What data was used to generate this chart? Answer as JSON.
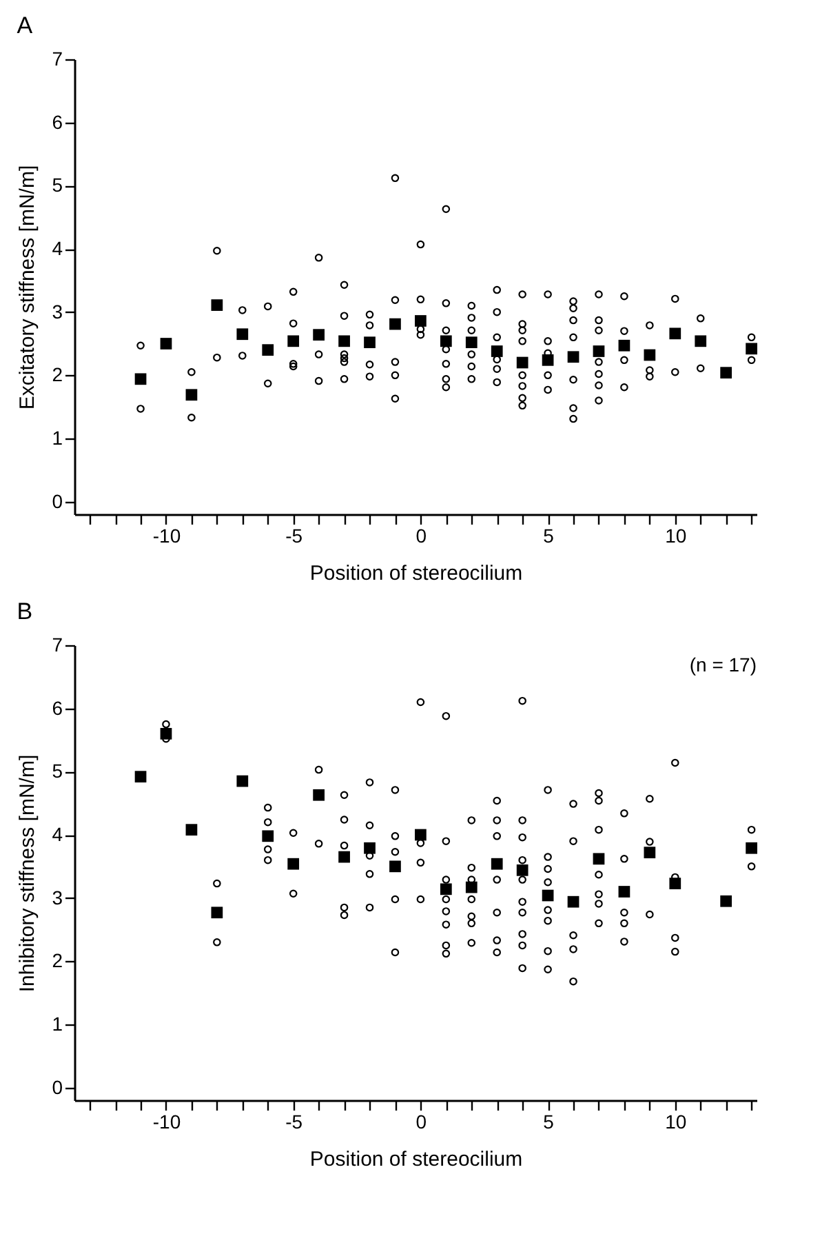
{
  "chart_data": [
    {
      "type": "scatter",
      "title": "A",
      "xlabel": "Position of stereocilium",
      "ylabel": "Excitatory stiffness [mN/m]",
      "xlim": [
        -13.6,
        13.2
      ],
      "ylim": [
        -0.2,
        7
      ],
      "xticks": [
        {
          "value": -13,
          "label": null
        },
        {
          "value": -12,
          "label": null
        },
        {
          "value": -11,
          "label": null
        },
        -10,
        {
          "value": -9,
          "label": null
        },
        {
          "value": -8,
          "label": null
        },
        {
          "value": -7,
          "label": null
        },
        {
          "value": -6,
          "label": null
        },
        -5,
        {
          "value": -4,
          "label": null
        },
        {
          "value": -3,
          "label": null
        },
        {
          "value": -2,
          "label": null
        },
        {
          "value": -1,
          "label": null
        },
        0,
        {
          "value": 1,
          "label": null
        },
        {
          "value": 2,
          "label": null
        },
        {
          "value": 3,
          "label": null
        },
        {
          "value": 4,
          "label": null
        },
        5,
        {
          "value": 6,
          "label": null
        },
        {
          "value": 7,
          "label": null
        },
        {
          "value": 8,
          "label": null
        },
        {
          "value": 9,
          "label": null
        },
        10,
        {
          "value": 11,
          "label": null
        },
        {
          "value": 12,
          "label": null
        },
        {
          "value": 13,
          "label": null
        }
      ],
      "yticks": [
        0,
        1,
        2,
        3,
        4,
        5,
        6,
        7
      ],
      "series": [
        {
          "type": "scatter",
          "marker": "circle",
          "color": "#000000",
          "x": [
            -11,
            -11,
            -9,
            -9,
            -8,
            -8,
            -7,
            -7,
            -6,
            -6,
            -5,
            -5,
            -5,
            -5,
            -4,
            -4,
            -4,
            -3,
            -3,
            -3,
            -3,
            -3,
            -3,
            -2,
            -2,
            -2,
            -2,
            -1,
            -1,
            -1,
            -1,
            -1,
            0,
            0,
            0,
            0,
            1,
            1,
            1,
            1,
            1,
            1,
            1,
            2,
            2,
            2,
            2,
            2,
            2,
            3,
            3,
            3,
            3,
            3,
            3,
            4,
            4,
            4,
            4,
            4,
            4,
            4,
            4,
            5,
            5,
            5,
            5,
            5,
            6,
            6,
            6,
            6,
            6,
            6,
            6,
            7,
            7,
            7,
            7,
            7,
            7,
            7,
            8,
            8,
            8,
            8,
            9,
            9,
            9,
            10,
            10,
            11,
            11,
            13,
            13
          ],
          "values": [
            2.47,
            1.47,
            2.05,
            1.33,
            3.97,
            2.28,
            3.03,
            2.31,
            3.09,
            1.87,
            3.32,
            2.82,
            2.18,
            2.14,
            3.86,
            2.33,
            1.91,
            3.43,
            2.94,
            2.33,
            2.27,
            2.21,
            1.94,
            2.96,
            2.79,
            2.17,
            1.98,
            5.12,
            3.19,
            2.21,
            2.0,
            1.63,
            4.07,
            3.2,
            2.73,
            2.64,
            4.63,
            3.14,
            2.71,
            2.41,
            2.18,
            1.94,
            1.81,
            3.1,
            2.91,
            2.71,
            2.33,
            2.14,
            1.94,
            3.35,
            3.0,
            2.6,
            2.25,
            2.1,
            1.89,
            3.28,
            2.81,
            2.71,
            2.54,
            2.0,
            1.83,
            1.64,
            1.52,
            3.28,
            2.54,
            2.35,
            2.0,
            1.77,
            3.17,
            3.06,
            2.87,
            2.6,
            1.93,
            1.48,
            1.31,
            3.28,
            2.87,
            2.71,
            2.21,
            2.02,
            1.84,
            1.6,
            3.25,
            2.7,
            2.24,
            1.81,
            2.79,
            2.08,
            1.98,
            3.21,
            2.05,
            2.9,
            2.11,
            2.6,
            2.24
          ]
        },
        {
          "type": "scatter",
          "marker": "square",
          "color": "#000000",
          "x": [
            -11,
            -10,
            -9,
            -8,
            -7,
            -6,
            -5,
            -4,
            -3,
            -2,
            -1,
            0,
            1,
            2,
            3,
            4,
            5,
            6,
            7,
            8,
            9,
            10,
            11,
            12,
            13
          ],
          "values": [
            1.94,
            2.5,
            1.69,
            3.11,
            2.65,
            2.4,
            2.54,
            2.64,
            2.54,
            2.52,
            2.81,
            2.86,
            2.54,
            2.52,
            2.38,
            2.2,
            2.24,
            2.29,
            2.38,
            2.47,
            2.32,
            2.66,
            2.54,
            2.04,
            2.42
          ]
        }
      ]
    },
    {
      "type": "scatter",
      "title": "B",
      "xlabel": "Position of stereocilium",
      "ylabel": "Inhibitory stiffness [mN/m]",
      "annotations": [
        "(n = 17)"
      ],
      "xlim": [
        -13.6,
        13.2
      ],
      "ylim": [
        -0.2,
        7
      ],
      "xticks": [
        {
          "value": -13,
          "label": null
        },
        {
          "value": -12,
          "label": null
        },
        {
          "value": -11,
          "label": null
        },
        -10,
        {
          "value": -9,
          "label": null
        },
        {
          "value": -8,
          "label": null
        },
        {
          "value": -7,
          "label": null
        },
        {
          "value": -6,
          "label": null
        },
        -5,
        {
          "value": -4,
          "label": null
        },
        {
          "value": -3,
          "label": null
        },
        {
          "value": -2,
          "label": null
        },
        {
          "value": -1,
          "label": null
        },
        0,
        {
          "value": 1,
          "label": null
        },
        {
          "value": 2,
          "label": null
        },
        {
          "value": 3,
          "label": null
        },
        {
          "value": 4,
          "label": null
        },
        5,
        {
          "value": 6,
          "label": null
        },
        {
          "value": 7,
          "label": null
        },
        {
          "value": 8,
          "label": null
        },
        {
          "value": 9,
          "label": null
        },
        10,
        {
          "value": 11,
          "label": null
        },
        {
          "value": 12,
          "label": null
        },
        {
          "value": 13,
          "label": null
        }
      ],
      "yticks": [
        0,
        1,
        2,
        3,
        4,
        5,
        6,
        7
      ],
      "series": [
        {
          "type": "scatter",
          "marker": "circle",
          "color": "#000000",
          "x": [
            -10,
            -10,
            -8,
            -8,
            -6,
            -6,
            -6,
            -6,
            -5,
            -5,
            -4,
            -4,
            -3,
            -3,
            -3,
            -3,
            -3,
            -2,
            -2,
            -2,
            -2,
            -2,
            -1,
            -1,
            -1,
            -1,
            -1,
            0,
            0,
            0,
            0,
            1,
            1,
            1,
            1,
            1,
            1,
            1,
            1,
            2,
            2,
            2,
            2,
            2,
            2,
            2,
            3,
            3,
            3,
            3,
            3,
            3,
            3,
            4,
            4,
            4,
            4,
            4,
            4,
            4,
            4,
            4,
            4,
            5,
            5,
            5,
            5,
            5,
            5,
            5,
            5,
            6,
            6,
            6,
            6,
            6,
            7,
            7,
            7,
            7,
            7,
            7,
            7,
            8,
            8,
            8,
            8,
            8,
            9,
            9,
            9,
            10,
            10,
            10,
            10,
            13,
            13
          ],
          "values": [
            5.75,
            5.52,
            3.23,
            2.3,
            4.43,
            4.2,
            3.77,
            3.6,
            4.03,
            3.07,
            5.03,
            3.86,
            4.63,
            4.24,
            3.83,
            2.85,
            2.73,
            4.83,
            4.15,
            3.67,
            3.38,
            2.85,
            4.71,
            3.98,
            3.73,
            2.98,
            2.14,
            6.1,
            3.87,
            3.56,
            2.98,
            5.88,
            3.9,
            3.29,
            2.98,
            2.79,
            2.58,
            2.25,
            2.12,
            4.23,
            3.48,
            3.29,
            2.98,
            2.71,
            2.6,
            2.29,
            4.54,
            4.23,
            3.98,
            3.29,
            2.77,
            2.33,
            2.14,
            6.12,
            4.23,
            3.96,
            3.6,
            3.29,
            2.94,
            2.77,
            2.43,
            2.25,
            1.89,
            4.71,
            3.65,
            3.46,
            3.25,
            2.81,
            2.64,
            2.16,
            1.87,
            4.49,
            3.9,
            2.41,
            2.19,
            1.68,
            4.66,
            4.54,
            4.08,
            3.37,
            3.06,
            2.91,
            2.6,
            4.34,
            3.62,
            2.77,
            2.6,
            2.31,
            4.57,
            3.89,
            2.74,
            5.14,
            3.33,
            2.37,
            2.15,
            4.08,
            3.5
          ]
        },
        {
          "type": "scatter",
          "marker": "square",
          "color": "#000000",
          "x": [
            -11,
            -10,
            -9,
            -8,
            -7,
            -6,
            -5,
            -4,
            -3,
            -2,
            -1,
            0,
            1,
            2,
            3,
            4,
            5,
            6,
            7,
            8,
            9,
            10,
            12,
            13
          ],
          "values": [
            4.92,
            5.6,
            4.08,
            2.77,
            4.85,
            3.98,
            3.54,
            4.63,
            3.65,
            3.79,
            3.5,
            4.0,
            3.14,
            3.17,
            3.54,
            3.44,
            3.04,
            2.94,
            3.62,
            3.1,
            3.72,
            3.23,
            2.95,
            3.79
          ]
        }
      ]
    }
  ]
}
